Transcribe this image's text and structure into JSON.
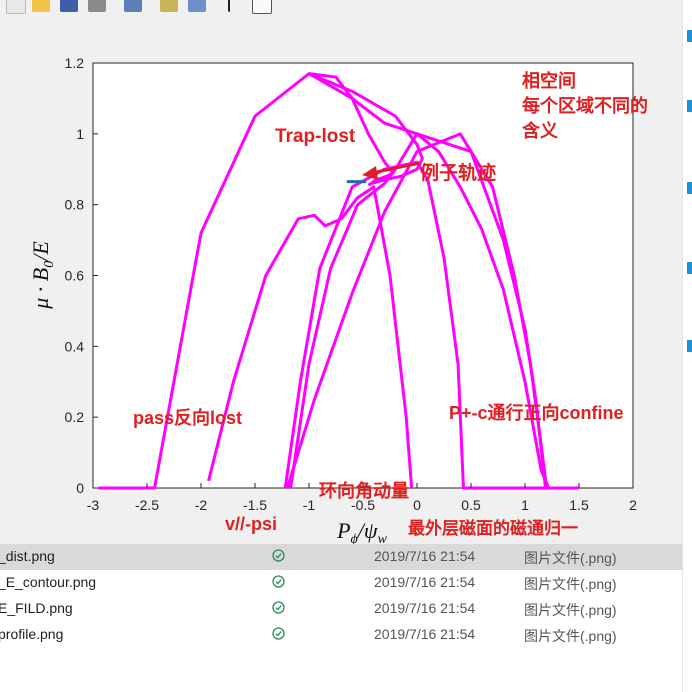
{
  "toolbar": {
    "icons": [
      "new-file-icon",
      "open-folder-icon",
      "save-icon",
      "print-icon",
      "link-icon",
      "colorbar-icon",
      "legend-icon",
      "pointer-icon",
      "property-editor-icon"
    ]
  },
  "chart_data": {
    "type": "line",
    "xlabel": "P_ϕ/ψ_w",
    "ylabel": "μ·B_0/E",
    "xlim": [
      -3,
      2
    ],
    "ylim": [
      0,
      1.2
    ],
    "x_ticks": [
      "-3",
      "-2.5",
      "-2",
      "-1.5",
      "-1",
      "-0.5",
      "0",
      "0.5",
      "1",
      "1.5",
      "2"
    ],
    "y_ticks": [
      "0",
      "0.2",
      "0.4",
      "0.6",
      "0.8",
      "1",
      "1.2"
    ],
    "grid": false,
    "line_color": "#ff00ff",
    "series": [
      {
        "x": [
          -2.95,
          -2.43,
          -2.0,
          -1.5,
          -1.0,
          -0.6,
          -0.3,
          0.0,
          0.2,
          0.4,
          0.6,
          0.8,
          1.0,
          1.15,
          1.22,
          1.5
        ],
        "y": [
          0,
          0,
          0.72,
          1.05,
          1.17,
          1.1,
          1.03,
          1.0,
          0.95,
          0.85,
          0.73,
          0.56,
          0.3,
          0.05,
          0,
          0
        ]
      },
      {
        "x": [
          -1.0,
          -0.75,
          -0.6,
          -0.45,
          -0.3,
          -0.22,
          -0.28,
          -0.38,
          -0.45
        ],
        "y": [
          1.17,
          1.16,
          1.1,
          1.0,
          0.92,
          0.89,
          0.88,
          0.87,
          0.855
        ]
      },
      {
        "x": [
          -1.0,
          -0.6,
          -0.2,
          0.0,
          0.05,
          0.0,
          -0.15,
          -0.3,
          -0.42
        ],
        "y": [
          1.17,
          1.12,
          1.05,
          0.97,
          0.93,
          0.9,
          0.88,
          0.87,
          0.86
        ]
      },
      {
        "x": [
          -1.93,
          -1.7,
          -1.4,
          -1.1,
          -0.95,
          -0.85,
          -0.7,
          -0.55,
          -0.4,
          -0.25,
          -0.1,
          -0.05
        ],
        "y": [
          0.02,
          0.3,
          0.6,
          0.76,
          0.77,
          0.74,
          0.76,
          0.82,
          0.85,
          0.6,
          0.2,
          0
        ]
      },
      {
        "x": [
          -1.22,
          -1.08,
          -0.9,
          -0.6,
          -0.3,
          0.0,
          0.1,
          0.25,
          0.38,
          0.43,
          0.55,
          0.8,
          1.0,
          1.12,
          1.22
        ],
        "y": [
          0,
          0.3,
          0.62,
          0.85,
          0.9,
          0.92,
          0.87,
          0.65,
          0.35,
          0,
          0,
          0,
          0,
          0,
          0
        ]
      },
      {
        "x": [
          -1.17,
          -1.0,
          -0.8,
          -0.55,
          -0.3,
          -0.2,
          0.0,
          0.5,
          0.8,
          1.0,
          1.1,
          1.19
        ],
        "y": [
          0,
          0.35,
          0.62,
          0.8,
          0.86,
          0.9,
          1.0,
          0.95,
          0.7,
          0.45,
          0.25,
          0
        ]
      },
      {
        "x": [
          -1.2,
          -0.95,
          -0.6,
          -0.3,
          0.0,
          0.4,
          0.7,
          0.9,
          1.05,
          1.15,
          1.2
        ],
        "y": [
          0,
          0.25,
          0.55,
          0.78,
          0.95,
          1.0,
          0.85,
          0.6,
          0.35,
          0.12,
          0
        ]
      }
    ],
    "marker_segment": {
      "x": [
        -0.65,
        -0.47
      ],
      "y": [
        0.865,
        0.865
      ],
      "color": "#1a6fb5"
    },
    "annotations": [
      {
        "text": "相空间"
      },
      {
        "text": "每个区域不同的"
      },
      {
        "text": "含义"
      },
      {
        "text": "Trap-lost"
      },
      {
        "text": "例子轨迹"
      },
      {
        "text": "pass反向lost"
      },
      {
        "text": "P+-c通行正向confine"
      },
      {
        "text": "环向角动量"
      },
      {
        "text": "v//-psi"
      },
      {
        "text": "最外层磁面的磁通归一"
      }
    ]
  },
  "files": [
    {
      "name": "_dist.png",
      "date": "2019/7/16 21:54",
      "type": "图片文件(.png)"
    },
    {
      "name": "_E_contour.png",
      "date": "2019/7/16 21:54",
      "type": "图片文件(.png)"
    },
    {
      "name": "E_FILD.png",
      "date": "2019/7/16 21:54",
      "type": "图片文件(.png)"
    },
    {
      "name": "profile.png",
      "date": "2019/7/16 21:54",
      "type": "图片文件(.png)"
    }
  ]
}
